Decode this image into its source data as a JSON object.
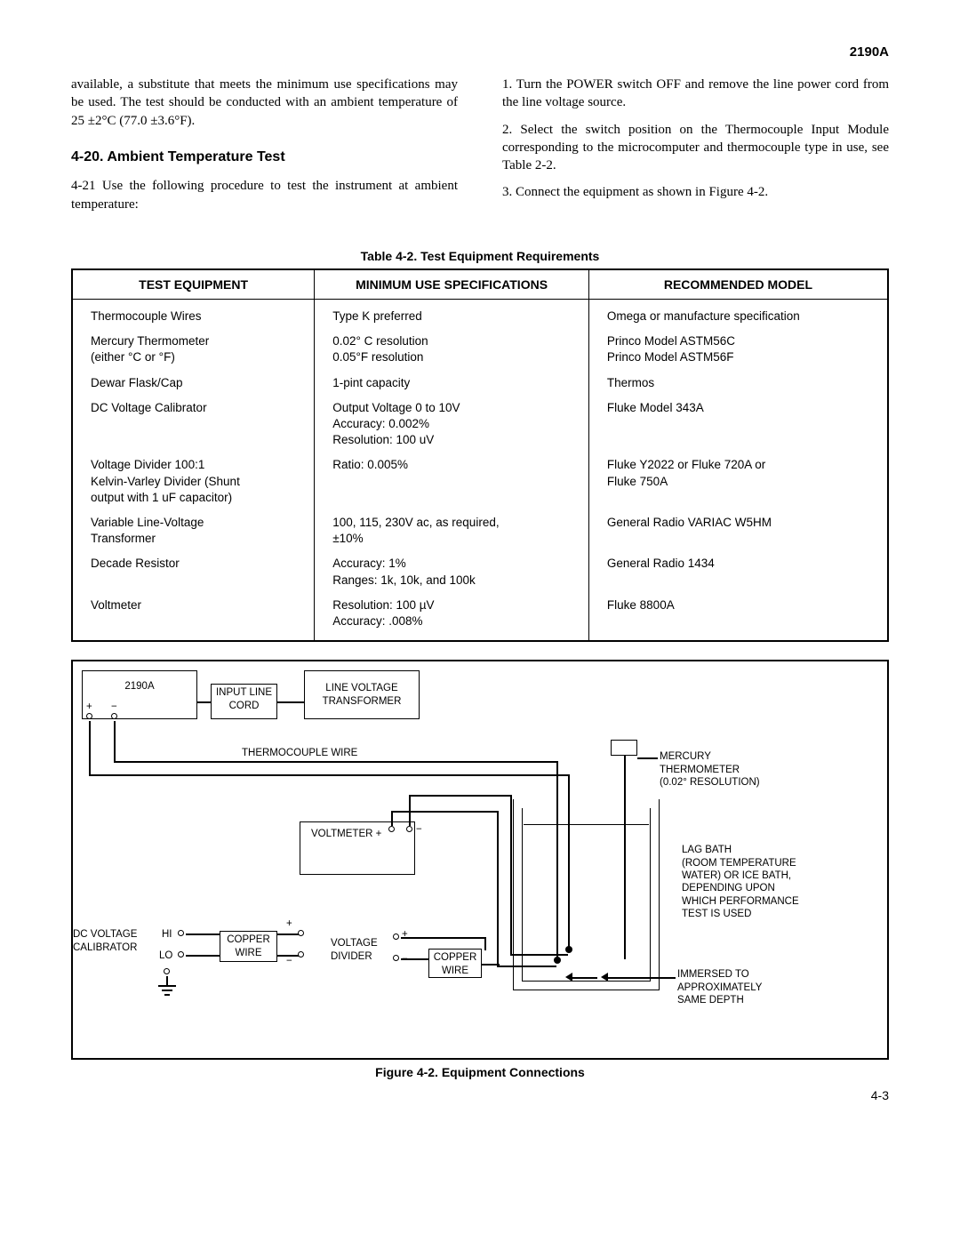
{
  "doc_id": "2190A",
  "intro_para": "available, a substitute that meets the minimum use specifications may be used. The test should be conducted with an ambient temperature of 25 ±2°C (77.0 ±3.6°F).",
  "section_heading": "4-20.  Ambient Temperature Test",
  "proc_para": "4-21   Use the following procedure to test the instrument at ambient temperature:",
  "steps": {
    "s1": "1.   Turn the POWER switch OFF and remove the line power cord from the line voltage source.",
    "s2": "2.   Select the switch position on the Thermocouple Input Module corresponding to the microcomputer and thermocouple type in use, see Table 2-2.",
    "s3": "3.   Connect the equipment as shown in Figure 4-2."
  },
  "table": {
    "caption": "Table 4-2. Test Equipment Requirements",
    "columns": [
      "TEST EQUIPMENT",
      "MINIMUM USE SPECIFICATIONS",
      "RECOMMENDED MODEL"
    ],
    "rows": [
      [
        "Thermocouple Wires",
        "Type K preferred",
        "Omega or manufacture specification"
      ],
      [
        "Mercury Thermometer\n(either °C or °F)",
        "0.02° C resolution\n0.05°F resolution",
        "Princo Model ASTM56C\nPrinco Model ASTM56F"
      ],
      [
        "Dewar Flask/Cap",
        "1-pint capacity",
        "Thermos"
      ],
      [
        "DC Voltage Calibrator",
        "Output Voltage  0 to 10V\nAccuracy:  0.002%\nResolution:  100 uV",
        "Fluke Model 343A"
      ],
      [
        "Voltage Divider 100:1\nKelvin-Varley Divider (Shunt\noutput with 1 uF capacitor)",
        "Ratio:  0.005%",
        "Fluke Y2022 or Fluke 720A or\nFluke 750A"
      ],
      [
        "Variable Line-Voltage\nTransformer",
        "100, 115, 230V ac, as required,\n±10%",
        "General Radio VARIAC W5HM"
      ],
      [
        "Decade Resistor",
        "Accuracy:  1%\nRanges:  1k, 10k, and 100k",
        "General Radio 1434"
      ],
      [
        "Voltmeter",
        "Resolution:   100 µV\nAccuracy:   .008%",
        "Fluke 8800A"
      ]
    ]
  },
  "figure": {
    "caption": "Figure 4-2. Equipment Connections",
    "labels": {
      "unit": "2190A",
      "plus": "+",
      "minus": "−",
      "input_line_cord": "INPUT LINE\nCORD",
      "line_voltage_transformer": "LINE VOLTAGE\nTRANSFORMER",
      "thermocouple_wire": "THERMOCOUPLE WIRE",
      "mercury_therm": "MERCURY\nTHERMOMETER\n(0.02° RESOLUTION)",
      "voltmeter": "VOLTMETER  +",
      "lag_bath": "LAG BATH\n(ROOM TEMPERATURE\nWATER) OR ICE BATH,\nDEPENDING UPON\nWHICH PERFORMANCE\nTEST IS USED",
      "dc_voltage_calibrator": "DC VOLTAGE\nCALIBRATOR",
      "hi": "HI",
      "lo": "LO",
      "copper_wire": "COPPER\nWIRE",
      "voltage_divider": "VOLTAGE\nDIVIDER",
      "immersed": "IMMERSED TO\nAPPROXIMATELY\nSAME DEPTH"
    }
  },
  "page_num": "4-3"
}
